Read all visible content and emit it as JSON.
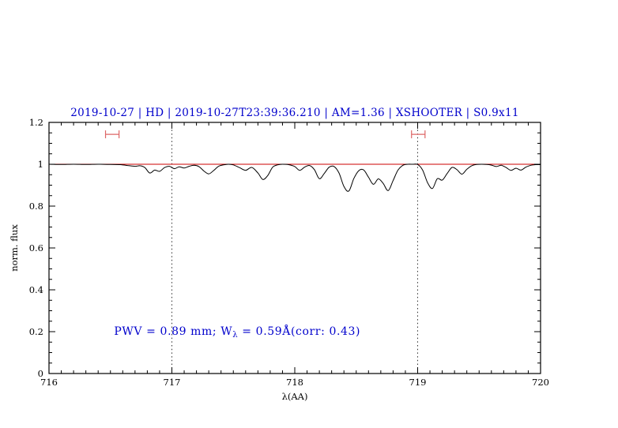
{
  "chart_data": {
    "type": "line",
    "title": "2019-10-27 | HD | 2019-10-27T23:39:36.210 | AM=1.36 | XSHOOTER | S0.9x11",
    "xlabel": "λ(AA)",
    "ylabel": "norm. flux",
    "xlim": [
      716,
      720
    ],
    "ylim": [
      0,
      1.2
    ],
    "grid": false,
    "legend": "none",
    "x_ticks": [
      716,
      717,
      718,
      719,
      720
    ],
    "x_tick_labels": [
      "716",
      "717",
      "718",
      "719",
      "720"
    ],
    "y_ticks": [
      0,
      0.2,
      0.4,
      0.6,
      0.8,
      1,
      1.2
    ],
    "y_tick_labels": [
      "0",
      "0.2",
      "0.4",
      "0.6",
      "0.8",
      "1",
      "1.2"
    ],
    "dotted_vlines": [
      717,
      719
    ],
    "continuum": {
      "y": 1.0
    },
    "interval_markers": [
      {
        "x1": 716.46,
        "x2": 716.57,
        "y": 1.143
      },
      {
        "x1": 718.95,
        "x2": 719.06,
        "y": 1.143
      }
    ],
    "annotation": {
      "prefix": "PWV = 0.89 mm; W",
      "sub": "λ",
      "suffix": " = 0.59Å(corr: 0.43)",
      "x": 716.53,
      "y": 0.185,
      "color": "#0000cc"
    },
    "colors": {
      "title": "#0000cc",
      "continuum": "#cc0000",
      "marker": "#dd6666",
      "vline": "#333333",
      "spectrum": "#000000",
      "axis": "#000000"
    },
    "series": [
      {
        "name": "spectrum",
        "color": "#000000",
        "x": [
          716.0,
          716.1,
          716.2,
          716.3,
          716.4,
          716.5,
          716.58,
          716.64,
          716.7,
          716.74,
          716.78,
          716.82,
          716.86,
          716.9,
          716.94,
          716.98,
          717.02,
          717.06,
          717.1,
          717.14,
          717.18,
          717.22,
          717.26,
          717.3,
          717.34,
          717.38,
          717.42,
          717.46,
          717.5,
          717.55,
          717.6,
          717.65,
          717.7,
          717.74,
          717.78,
          717.82,
          717.86,
          717.9,
          717.95,
          718.0,
          718.04,
          718.08,
          718.12,
          718.16,
          718.2,
          718.24,
          718.28,
          718.32,
          718.36,
          718.4,
          718.44,
          718.48,
          718.52,
          718.56,
          718.6,
          718.64,
          718.68,
          718.72,
          718.76,
          718.8,
          718.84,
          718.88,
          718.92,
          718.96,
          719.0,
          719.04,
          719.08,
          719.12,
          719.16,
          719.2,
          719.24,
          719.28,
          719.32,
          719.36,
          719.4,
          719.44,
          719.48,
          719.52,
          719.56,
          719.6,
          719.64,
          719.68,
          719.72,
          719.76,
          719.8,
          719.84,
          719.88,
          719.92,
          719.96,
          720.0
        ],
        "y": [
          1.0,
          0.999,
          1.0,
          0.999,
          1.0,
          0.999,
          0.998,
          0.994,
          0.99,
          0.993,
          0.984,
          0.958,
          0.972,
          0.966,
          0.984,
          0.99,
          0.979,
          0.988,
          0.982,
          0.99,
          0.995,
          0.989,
          0.968,
          0.954,
          0.97,
          0.99,
          0.997,
          1.0,
          0.997,
          0.984,
          0.971,
          0.985,
          0.958,
          0.927,
          0.946,
          0.986,
          0.997,
          1.0,
          0.998,
          0.989,
          0.971,
          0.986,
          0.994,
          0.974,
          0.931,
          0.956,
          0.986,
          0.989,
          0.958,
          0.894,
          0.872,
          0.931,
          0.969,
          0.973,
          0.938,
          0.904,
          0.93,
          0.908,
          0.874,
          0.922,
          0.972,
          0.995,
          1.0,
          1.0,
          0.999,
          0.973,
          0.913,
          0.884,
          0.931,
          0.924,
          0.956,
          0.985,
          0.974,
          0.953,
          0.976,
          0.993,
          0.999,
          1.0,
          0.999,
          0.996,
          0.989,
          0.995,
          0.984,
          0.971,
          0.981,
          0.972,
          0.986,
          0.995,
          0.998,
          0.998
        ]
      }
    ]
  }
}
